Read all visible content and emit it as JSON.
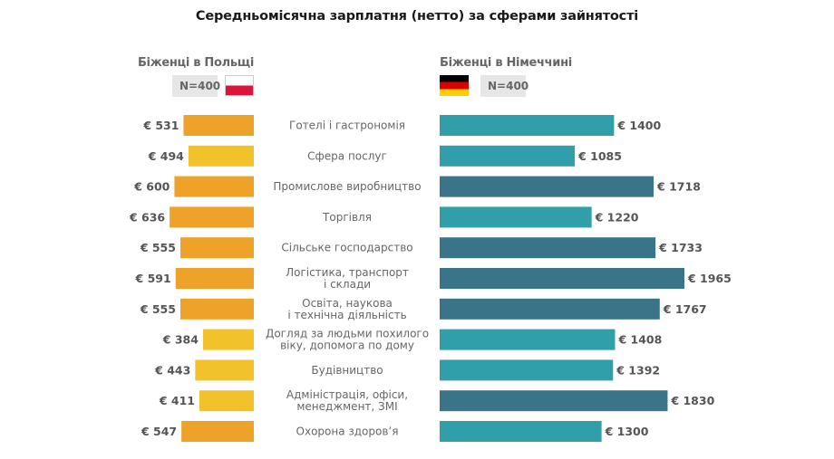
{
  "chart_data": {
    "type": "bar",
    "title": "Середньомісячна зарплатня (нетто) за сферами зайнятості",
    "currency_symbol": "€",
    "categories": [
      [
        "Готелі і гастрономія"
      ],
      [
        "Сфера послуг"
      ],
      [
        "Промислове виробництво"
      ],
      [
        "Торгівля"
      ],
      [
        "Сільське господарство"
      ],
      [
        "Логістика, транспорт",
        "і склади"
      ],
      [
        "Освіта, наукова",
        "і технічна діяльність"
      ],
      [
        "Догляд за людьми похилого",
        "віку, допомога по дому"
      ],
      [
        "Будівництво"
      ],
      [
        "Адміністрація, офіси,",
        "менеджмент, ЗМІ"
      ],
      [
        "Охорона здоров’я"
      ]
    ],
    "series": [
      {
        "name": "Біженці в Польщі",
        "sample": "N=400",
        "flag": "poland-flag",
        "direction": "left",
        "values": [
          531,
          494,
          600,
          636,
          555,
          591,
          555,
          384,
          443,
          411,
          547
        ],
        "highlight": [
          true,
          false,
          true,
          true,
          true,
          true,
          true,
          false,
          false,
          false,
          true
        ],
        "colors": {
          "highlight": "#EFA22A",
          "normal": "#F1C22A"
        }
      },
      {
        "name": "Біженці в Німеччині",
        "sample": "N=400",
        "flag": "germany-flag",
        "direction": "right",
        "values": [
          1400,
          1085,
          1718,
          1220,
          1733,
          1965,
          1767,
          1408,
          1392,
          1830,
          1300
        ],
        "highlight": [
          false,
          false,
          true,
          false,
          true,
          true,
          true,
          false,
          false,
          true,
          false
        ],
        "colors": {
          "highlight": "#3A7489",
          "normal": "#319FAA"
        }
      }
    ],
    "xlabel": "",
    "ylabel": "",
    "grid": false
  }
}
